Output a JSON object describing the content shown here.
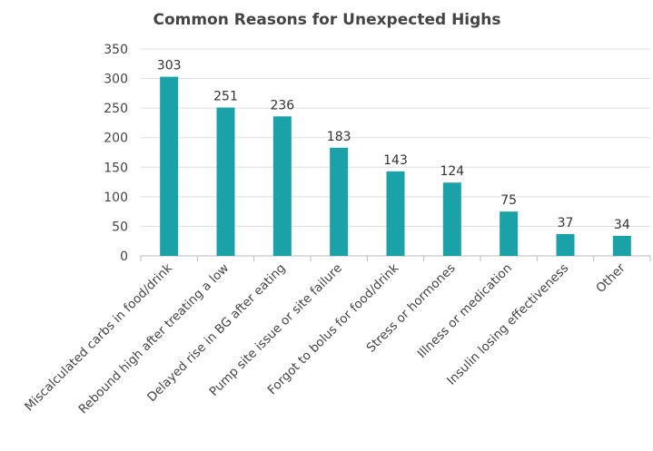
{
  "chart_data": {
    "type": "bar",
    "title": "Common Reasons for Unexpected Highs",
    "xlabel": "",
    "ylabel": "",
    "ylim": [
      0,
      350
    ],
    "yticks": [
      0,
      50,
      100,
      150,
      200,
      250,
      300,
      350
    ],
    "grid": true,
    "categories": [
      "Miscalculated carbs in food/drink",
      "Rebound high after treating a low",
      "Delayed rise in BG after eating",
      "Pump site issue or site failure",
      "Forgot to bolus for food/drink",
      "Stress or hormones",
      "Illness or medication",
      "Insulin losing effectiveness",
      "Other"
    ],
    "values": [
      303,
      251,
      236,
      183,
      143,
      124,
      75,
      37,
      34
    ],
    "bar_color": "#1ba1a8"
  }
}
